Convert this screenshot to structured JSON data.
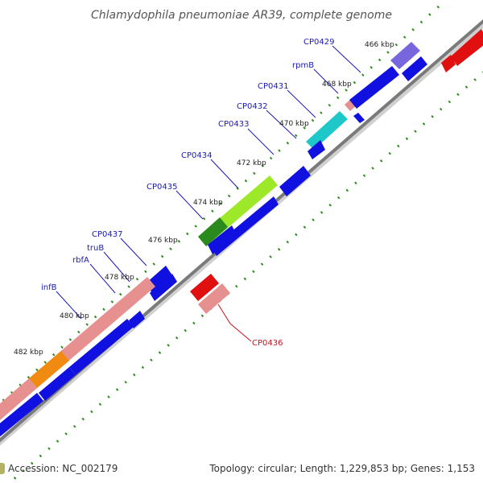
{
  "title": "Chlamydophila pneumoniae AR39, complete genome",
  "footer": {
    "accession": "Accession: NC_002179",
    "summary": "Topology: circular; Length: 1,229,853 bp; Genes: 1,153"
  },
  "colors": {
    "backbone": "#888888",
    "tick": "#2e8b1e",
    "forward_gene": "#1010e0",
    "reverse_gene": "#e01010",
    "label_blue": "#1a1ab4",
    "label_red": "#c8141e"
  },
  "ticks": [
    {
      "label": "466 kbp"
    },
    {
      "label": "468 kbp"
    },
    {
      "label": "470 kbp"
    },
    {
      "label": "472 kbp"
    },
    {
      "label": "474 kbp"
    },
    {
      "label": "476 kbp"
    },
    {
      "label": "478 kbp"
    },
    {
      "label": "480 kbp"
    },
    {
      "label": "482 kbp"
    }
  ],
  "gene_labels": [
    {
      "name": "CP0429"
    },
    {
      "name": "rpmB"
    },
    {
      "name": "CP0431"
    },
    {
      "name": "CP0432"
    },
    {
      "name": "CP0433"
    },
    {
      "name": "CP0434"
    },
    {
      "name": "CP0435"
    },
    {
      "name": "CP0437"
    },
    {
      "name": "truB"
    },
    {
      "name": "rbfA"
    },
    {
      "name": "infB"
    },
    {
      "name": "CP0436"
    }
  ]
}
